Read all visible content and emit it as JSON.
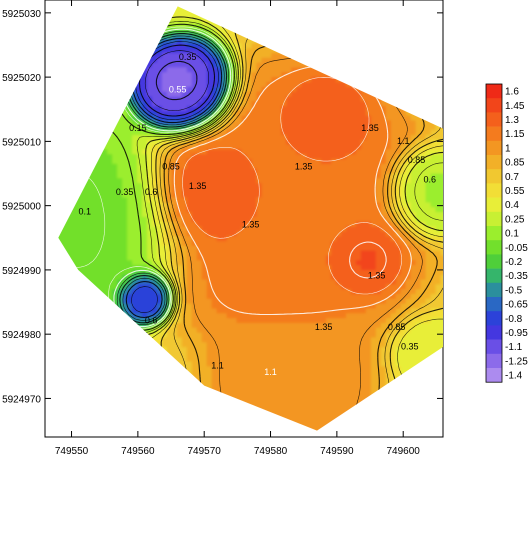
{
  "chart_data": {
    "type": "heatmap",
    "subtype": "filled-contour-map",
    "title": "",
    "xlabel": "",
    "ylabel": "",
    "xlim": [
      749546,
      749606
    ],
    "ylim": [
      5924964,
      5925032
    ],
    "x_ticks": [
      749550,
      749560,
      749570,
      749580,
      749590,
      749600
    ],
    "y_ticks": [
      5924970,
      5924980,
      5924990,
      5925000,
      5925010,
      5925020,
      5925030
    ],
    "grid": false,
    "legend_placement": "right",
    "colorbar": {
      "labels": [
        "1.6",
        "1.45",
        "1.3",
        "1.15",
        "1",
        "0.85",
        "0.7",
        "0.55",
        "0.4",
        "0.25",
        "0.1",
        "-0.05",
        "-0.2",
        "-0.35",
        "-0.5",
        "-0.65",
        "-0.8",
        "-0.95",
        "-1.1",
        "-1.25",
        "-1.4"
      ],
      "colors": [
        "#ef2a17",
        "#f2451a",
        "#f4601c",
        "#f47b1e",
        "#f39622",
        "#f2b028",
        "#f1c830",
        "#f2de36",
        "#e8ee38",
        "#c8f033",
        "#9bee2d",
        "#72e02c",
        "#4fcf3a",
        "#35b56b",
        "#2b8f9d",
        "#2a68c4",
        "#2c42d9",
        "#4437e0",
        "#6a4fe6",
        "#8c6bea",
        "#ac8bef"
      ]
    },
    "survey_outline": [
      [
        749548,
        5924995
      ],
      [
        749566,
        5925031
      ],
      [
        749606,
        5925012
      ],
      [
        749606,
        5924978
      ],
      [
        749587,
        5924965
      ],
      [
        749570,
        5924972
      ],
      [
        749551,
        5924990
      ]
    ],
    "field_sources": [
      {
        "x": 749567,
        "y": 5925018,
        "value": -1.3,
        "radius": 5.0
      },
      {
        "x": 749561,
        "y": 5924986,
        "value": -1.0,
        "radius": 2.8
      },
      {
        "x": 749553,
        "y": 5924998,
        "value": -0.05,
        "radius": 10.0
      },
      {
        "x": 749604,
        "y": 5925002,
        "value": 0.1,
        "radius": 4.5
      },
      {
        "x": 749604,
        "y": 5924977,
        "value": 0.4,
        "radius": 3.5
      },
      {
        "x": 749571,
        "y": 5925002,
        "value": 1.45,
        "radius": 6.0
      },
      {
        "x": 749594,
        "y": 5924992,
        "value": 1.45,
        "radius": 4.0
      },
      {
        "x": 749588,
        "y": 5925013,
        "value": 1.4,
        "radius": 5.0
      },
      {
        "x": 749583,
        "y": 5924972,
        "value": 1.05,
        "radius": 8.0
      },
      {
        "x": 749582,
        "y": 5925000,
        "value": 1.2,
        "radius": 14.0
      }
    ],
    "contour_labels": [
      {
        "text": "0.35",
        "x": 749567.5,
        "y": 5925023,
        "color": "#000000"
      },
      {
        "text": "0.55",
        "x": 749566,
        "y": 5925018,
        "color": "#ffffff"
      },
      {
        "text": "0.15",
        "x": 749560,
        "y": 5925012,
        "color": "#000000"
      },
      {
        "text": "0.35",
        "x": 749558,
        "y": 5925002,
        "color": "#000000"
      },
      {
        "text": "0.1",
        "x": 749552,
        "y": 5924999,
        "color": "#000000"
      },
      {
        "text": "0.6",
        "x": 749562,
        "y": 5925002,
        "color": "#000000"
      },
      {
        "text": "0.85",
        "x": 749565,
        "y": 5925006,
        "color": "#000000"
      },
      {
        "text": "1.35",
        "x": 749569,
        "y": 5925003,
        "color": "#000000"
      },
      {
        "text": "1.35",
        "x": 749585,
        "y": 5925006,
        "color": "#000000"
      },
      {
        "text": "1.35",
        "x": 749577,
        "y": 5924997,
        "color": "#000000"
      },
      {
        "text": "1.35",
        "x": 749595,
        "y": 5925012,
        "color": "#000000"
      },
      {
        "text": "1.35",
        "x": 749596,
        "y": 5924989,
        "color": "#000000"
      },
      {
        "text": "1.35",
        "x": 749588,
        "y": 5924981,
        "color": "#000000"
      },
      {
        "text": "1.1",
        "x": 749600,
        "y": 5925010,
        "color": "#000000"
      },
      {
        "text": "0.85",
        "x": 749602,
        "y": 5925007,
        "color": "#000000"
      },
      {
        "text": "0.6",
        "x": 749604,
        "y": 5925004,
        "color": "#000000"
      },
      {
        "text": "0.85",
        "x": 749599,
        "y": 5924981,
        "color": "#000000"
      },
      {
        "text": "0.35",
        "x": 749601,
        "y": 5924978,
        "color": "#000000"
      },
      {
        "text": "1.1",
        "x": 749572,
        "y": 5924975,
        "color": "#000000"
      },
      {
        "text": "1.1",
        "x": 749580,
        "y": 5924974,
        "color": "#ffffff"
      },
      {
        "text": "0.6",
        "x": 749562,
        "y": 5924982,
        "color": "#000000"
      }
    ]
  }
}
